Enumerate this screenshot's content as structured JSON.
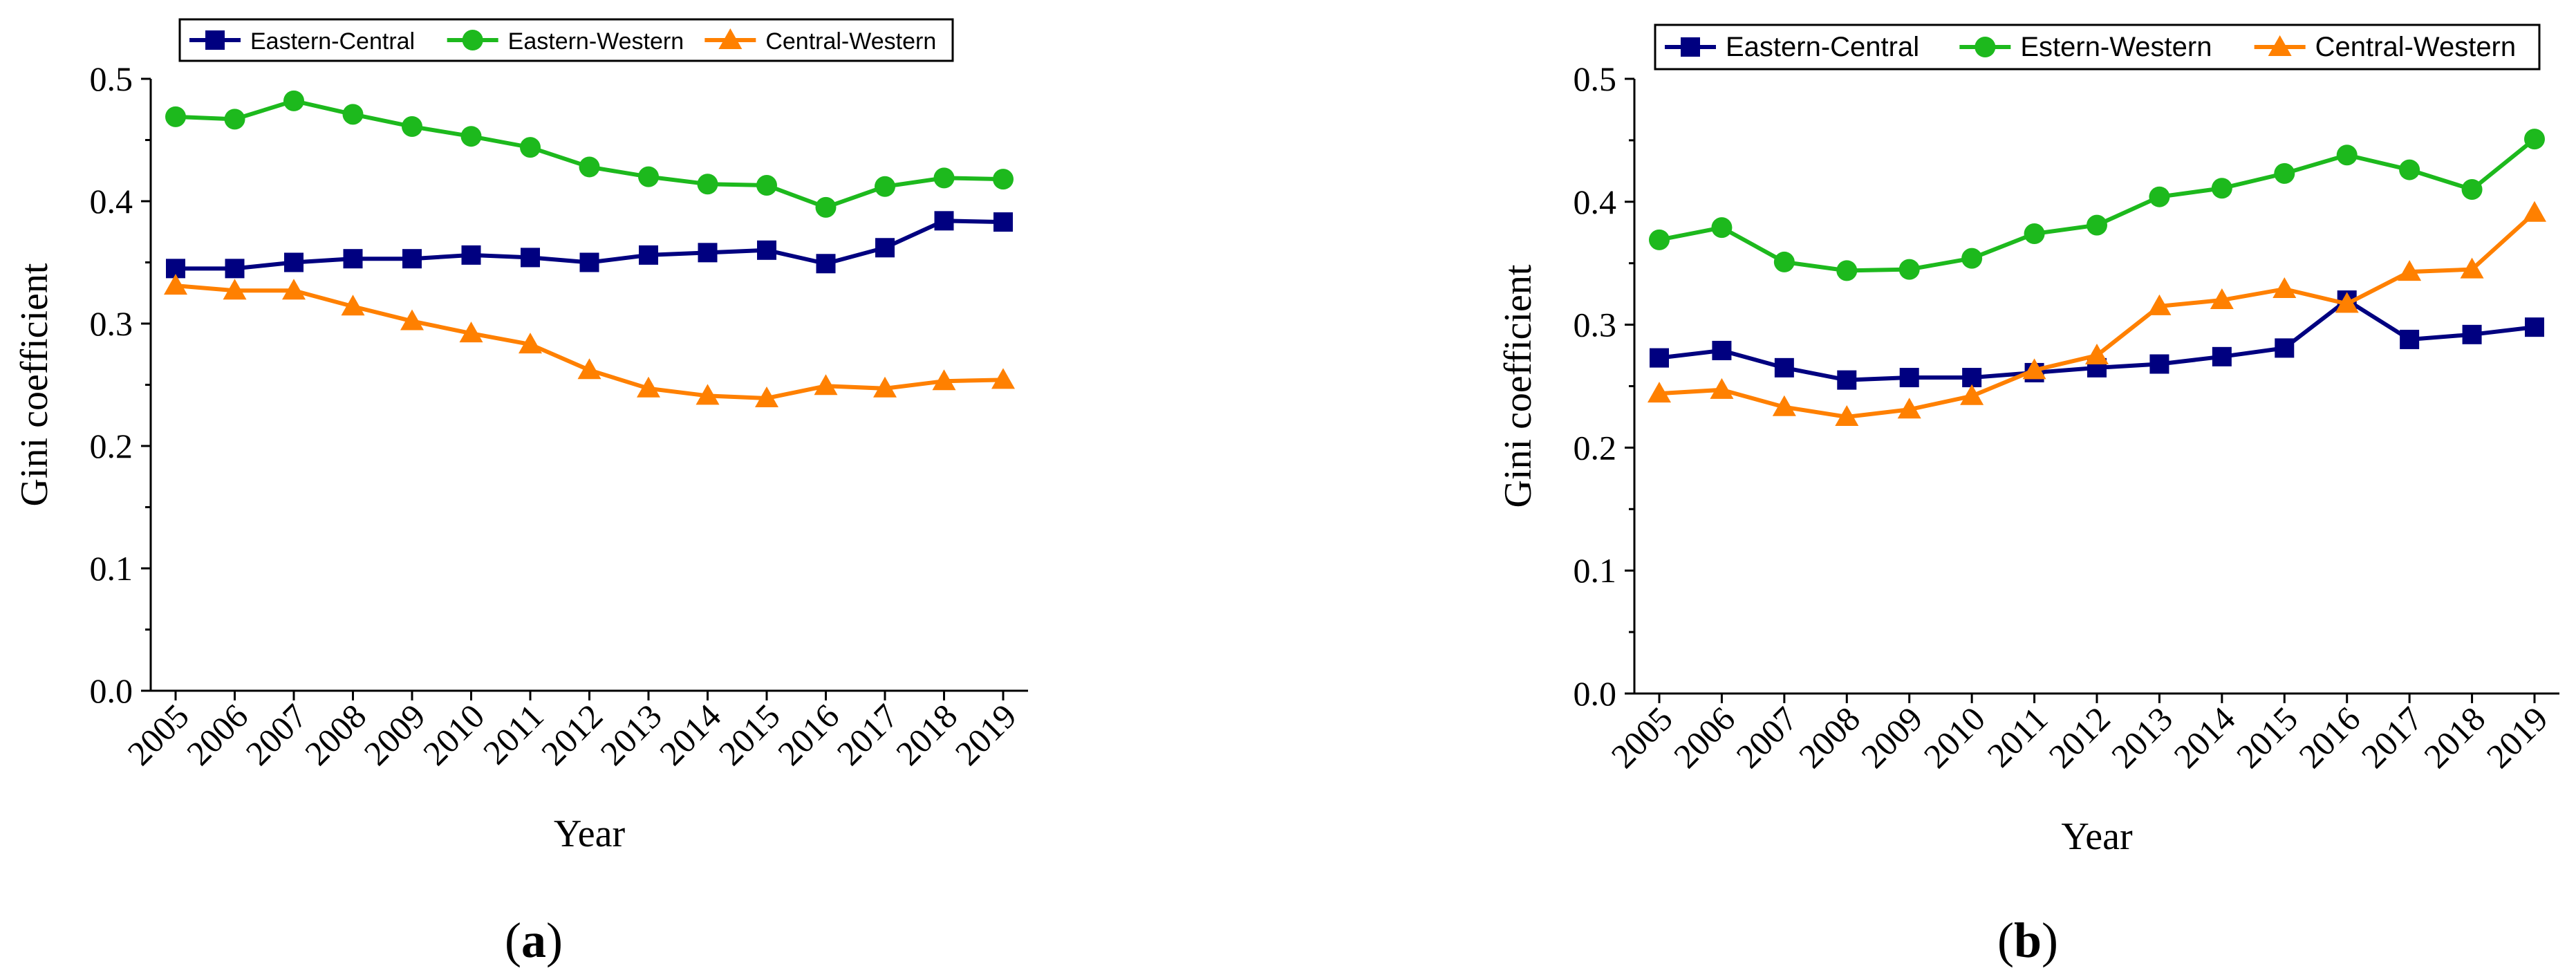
{
  "figure": {
    "panels": [
      "a",
      "b"
    ]
  },
  "colors": {
    "eastern_central": "#000080",
    "eastern_western": "#1DB91D",
    "central_western": "#FF8000",
    "axis": "#000000"
  },
  "chart_data": [
    {
      "type": "line",
      "panel_label": "a",
      "title": "",
      "xlabel": "Year",
      "ylabel": "Gini coefficient",
      "categories": [
        "2005",
        "2006",
        "2007",
        "2008",
        "2009",
        "2010",
        "2011",
        "2012",
        "2013",
        "2014",
        "2015",
        "2016",
        "2017",
        "2018",
        "2019"
      ],
      "ylim": [
        0,
        0.5
      ],
      "yticks": [
        "0.0",
        "0.1",
        "0.2",
        "0.3",
        "0.4",
        "0.5"
      ],
      "grid": false,
      "legend_position": "top",
      "series": [
        {
          "name": "Eastern-Central",
          "marker": "square",
          "color": "#000080",
          "values": [
            0.345,
            0.345,
            0.35,
            0.353,
            0.353,
            0.356,
            0.354,
            0.35,
            0.356,
            0.358,
            0.36,
            0.349,
            0.362,
            0.384,
            0.383
          ]
        },
        {
          "name": "Eastern-Western",
          "marker": "circle",
          "color": "#1DB91D",
          "values": [
            0.469,
            0.467,
            0.482,
            0.471,
            0.461,
            0.453,
            0.444,
            0.428,
            0.42,
            0.414,
            0.413,
            0.395,
            0.412,
            0.419,
            0.418
          ]
        },
        {
          "name": "Central-Western",
          "marker": "triangle",
          "color": "#FF8000",
          "values": [
            0.331,
            0.327,
            0.327,
            0.314,
            0.302,
            0.292,
            0.283,
            0.262,
            0.247,
            0.241,
            0.239,
            0.249,
            0.247,
            0.253,
            0.254
          ]
        }
      ]
    },
    {
      "type": "line",
      "panel_label": "b",
      "title": "",
      "xlabel": "Year",
      "ylabel": "Gini coefficient",
      "categories": [
        "2005",
        "2006",
        "2007",
        "2008",
        "2009",
        "2010",
        "2011",
        "2012",
        "2013",
        "2014",
        "2015",
        "2016",
        "2017",
        "2018",
        "2019"
      ],
      "ylim": [
        0,
        0.5
      ],
      "yticks": [
        "0.0",
        "0.1",
        "0.2",
        "0.3",
        "0.4",
        "0.5"
      ],
      "grid": false,
      "legend_position": "top",
      "series": [
        {
          "name": "Eastern-Central",
          "marker": "square",
          "color": "#000080",
          "values": [
            0.273,
            0.279,
            0.265,
            0.255,
            0.257,
            0.257,
            0.261,
            0.265,
            0.268,
            0.274,
            0.281,
            0.32,
            0.288,
            0.292,
            0.298
          ]
        },
        {
          "name": "Estern-Western",
          "marker": "circle",
          "color": "#1DB91D",
          "values": [
            0.369,
            0.379,
            0.351,
            0.344,
            0.345,
            0.354,
            0.374,
            0.381,
            0.404,
            0.411,
            0.423,
            0.438,
            0.426,
            0.41,
            0.451
          ]
        },
        {
          "name": "Central-Western",
          "marker": "triangle",
          "color": "#FF8000",
          "values": [
            0.244,
            0.247,
            0.233,
            0.225,
            0.231,
            0.242,
            0.263,
            0.275,
            0.315,
            0.32,
            0.329,
            0.317,
            0.343,
            0.345,
            0.391
          ]
        }
      ]
    }
  ]
}
